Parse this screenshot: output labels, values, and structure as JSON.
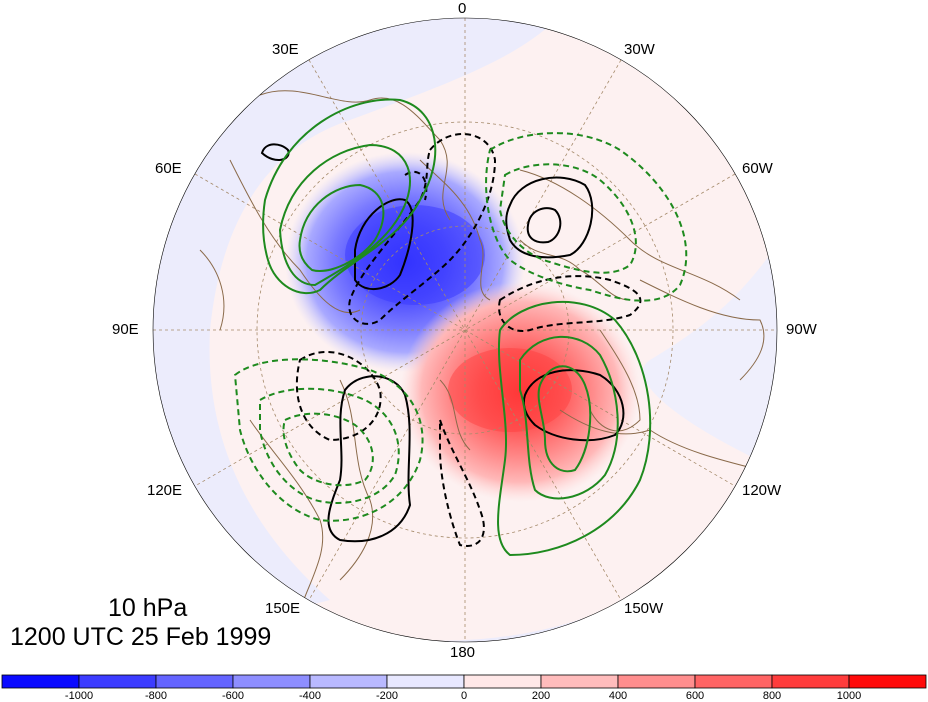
{
  "map": {
    "projection": "north-polar-stereographic",
    "level": "10 hPa",
    "valid_time": "1200 UTC 25 Feb 1999",
    "longitude_labels": {
      "lon_0": "0",
      "lon_30w": "30W",
      "lon_60w": "60W",
      "lon_90w": "90W",
      "lon_120w": "120W",
      "lon_150w": "150W",
      "lon_180": "180",
      "lon_150e": "150E",
      "lon_120e": "120E",
      "lon_90e": "90E",
      "lon_60e": "60E",
      "lon_30e": "30E"
    },
    "shaded_field": {
      "negative_center_sector": "Eurasia / Scandinavia",
      "positive_center_sector": "North Pacific / Alaska"
    },
    "contours": {
      "black_solid": "positive",
      "black_dashed": "negative",
      "green_solid": "positive",
      "green_dashed": "negative"
    }
  },
  "colorbar": {
    "labels": [
      "-1000",
      "-800",
      "-600",
      "-400",
      "-200",
      "0",
      "200",
      "400",
      "600",
      "800",
      "1000"
    ],
    "colors": [
      "#0a0aff",
      "#3c3cff",
      "#6464ff",
      "#8e8eff",
      "#b9b9ff",
      "#e8e8ff",
      "#ffe8e8",
      "#ffbcbc",
      "#ff8e8e",
      "#ff6464",
      "#ff3c3c",
      "#ff0a0a"
    ]
  }
}
